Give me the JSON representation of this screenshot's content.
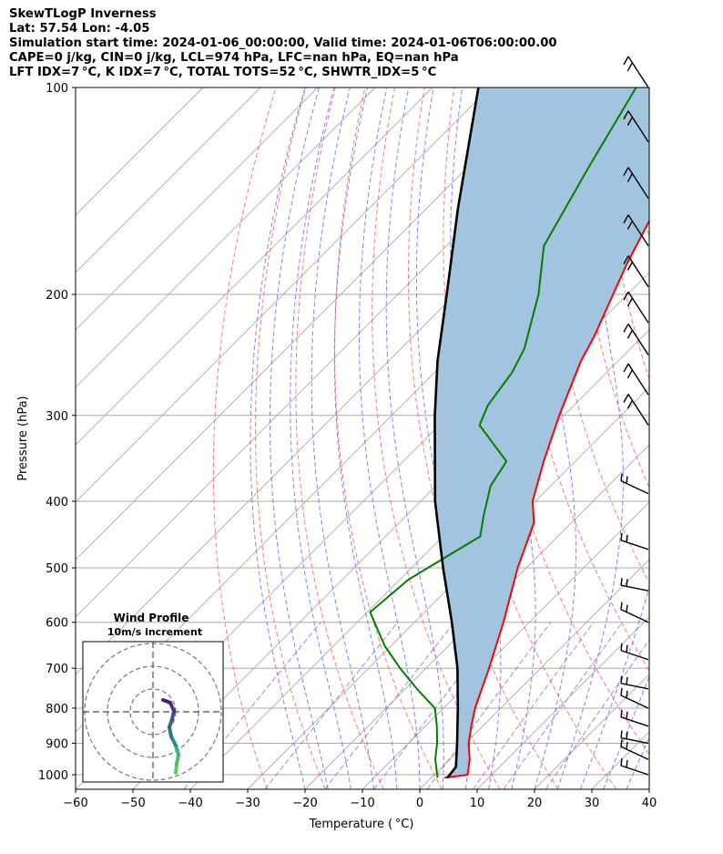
{
  "header": {
    "lines": [
      "SkewTLogP Inverness",
      "Lat: 57.54   Lon: -4.05",
      "Simulation start time: 2024-01-06_00:00:00, Valid time: 2024-01-06T06:00:00.00",
      "CAPE=0 j/kg, CIN=0 j/kg, LCL=974 hPa, LFC=nan hPa, EQ=nan hPa",
      "LFT IDX=7 °C, K IDX=7 °C, TOTAL TOTS=52 °C, SHWTR_IDX=5 °C"
    ]
  },
  "chart_data": {
    "type": "line",
    "subtype": "skew-T log-P",
    "xlabel": "Temperature ( °C)",
    "ylabel": "Pressure (hPa)",
    "xlim": [
      -60,
      40
    ],
    "ylim": [
      1050,
      100
    ],
    "y_scale": "log",
    "x_ticks": [
      -60,
      -50,
      -40,
      -30,
      -20,
      -10,
      0,
      10,
      20,
      30,
      40
    ],
    "x_tick_labels": [
      "−60",
      "−50",
      "−40",
      "−30",
      "−20",
      "−10",
      "0",
      "10",
      "20",
      "30",
      "40"
    ],
    "y_ticks": [
      100,
      200,
      300,
      400,
      500,
      600,
      700,
      800,
      900,
      1000
    ],
    "y_tick_labels": [
      "100",
      "200",
      "300",
      "400",
      "500",
      "600",
      "700",
      "800",
      "900",
      "1000"
    ],
    "grid": true,
    "colors": {
      "temperature": "#ff0000",
      "dewpoint": "#008000",
      "parcel": "#000000",
      "shade": "#a2c4de",
      "dry_adiabat": "#ff6060",
      "moist_adiabat": "#6070ff",
      "mixing_ratio": "#9966cc",
      "isotherm": "#aaaaaa"
    },
    "series": [
      {
        "name": "temperature",
        "points": [
          [
            1010,
            2.3
          ],
          [
            1000,
            5.8
          ],
          [
            950,
            3.5
          ],
          [
            900,
            0.5
          ],
          [
            850,
            -2.0
          ],
          [
            800,
            -4.5
          ],
          [
            700,
            -9.0
          ],
          [
            600,
            -14.5
          ],
          [
            500,
            -21.5
          ],
          [
            430,
            -26.5
          ],
          [
            400,
            -30.5
          ],
          [
            350,
            -35.5
          ],
          [
            300,
            -40.8
          ],
          [
            250,
            -46.5
          ],
          [
            230,
            -48.5
          ],
          [
            200,
            -52.5
          ],
          [
            180,
            -55.5
          ],
          [
            150,
            -60.0
          ],
          [
            130,
            -64.5
          ],
          [
            110,
            -70.0
          ],
          [
            100,
            -73.5
          ]
        ]
      },
      {
        "name": "dewpoint",
        "points": [
          [
            1010,
            1.1
          ],
          [
            1000,
            0.5
          ],
          [
            950,
            -2.5
          ],
          [
            900,
            -5.0
          ],
          [
            850,
            -8.0
          ],
          [
            800,
            -11.5
          ],
          [
            750,
            -18.0
          ],
          [
            700,
            -24.5
          ],
          [
            650,
            -31.0
          ],
          [
            600,
            -37.0
          ],
          [
            580,
            -39.5
          ],
          [
            520,
            -38.5
          ],
          [
            450,
            -33.5
          ],
          [
            420,
            -36.5
          ],
          [
            380,
            -40.5
          ],
          [
            350,
            -42.0
          ],
          [
            310,
            -53.0
          ],
          [
            290,
            -55.0
          ],
          [
            260,
            -56.5
          ],
          [
            240,
            -58.5
          ],
          [
            200,
            -65.5
          ],
          [
            170,
            -73.0
          ],
          [
            130,
            -79.0
          ],
          [
            100,
            -84.5
          ]
        ]
      },
      {
        "name": "parcel",
        "points": [
          [
            1010,
            2.8
          ],
          [
            974,
            2.4
          ],
          [
            900,
            -1.5
          ],
          [
            800,
            -7.5
          ],
          [
            700,
            -14.5
          ],
          [
            600,
            -23.5
          ],
          [
            500,
            -34.5
          ],
          [
            400,
            -47.5
          ],
          [
            300,
            -62.5
          ],
          [
            250,
            -71.5
          ],
          [
            200,
            -81.5
          ],
          [
            150,
            -94.5
          ],
          [
            100,
            -112.0
          ]
        ]
      }
    ],
    "wind_barbs_note": "Wind barbs on the right column",
    "inset": {
      "title": "Wind Profile",
      "subtitle": "10m/s increment",
      "hodograph_colormap": "viridis"
    }
  }
}
